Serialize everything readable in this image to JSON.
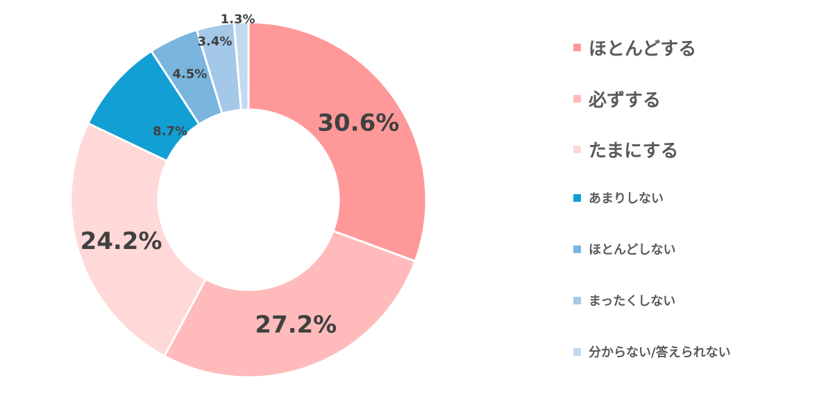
{
  "chart_data": {
    "type": "pie",
    "categories": [
      "ほとんどする",
      "必ずする",
      "たまにする",
      "あまりしない",
      "ほとんどしない",
      "まったくしない",
      "分からない/答えられない"
    ],
    "values": [
      30.6,
      27.2,
      24.2,
      8.7,
      4.5,
      3.4,
      1.3
    ],
    "labels": [
      "30.6%",
      "27.2%",
      "24.2%",
      "8.7%",
      "4.5%",
      "3.4%",
      "1.3%"
    ],
    "colors": [
      "#FF9999",
      "#FFBBBB",
      "#FFD8D8",
      "#129FD4",
      "#79B5DF",
      "#A4C8E8",
      "#C2DAF0"
    ],
    "legend_position": "right",
    "donut": true
  }
}
